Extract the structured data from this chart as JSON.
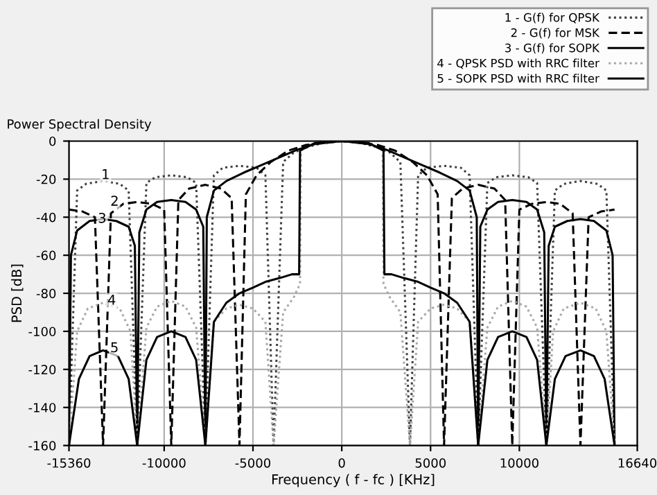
{
  "chart_data": {
    "type": "line",
    "title": "Power Spectral Density",
    "xlabel": "Frequency ( f - fc ) [KHz]",
    "ylabel": "PSD [dB]",
    "xlim": [
      -15360,
      16640
    ],
    "xticks": [
      -15360,
      -10000,
      -5000,
      0,
      5000,
      10000,
      16640
    ],
    "ylim": [
      -160,
      0
    ],
    "yticks": [
      -160,
      -140,
      -120,
      -100,
      -80,
      -60,
      -40,
      -20,
      0
    ],
    "grid": true,
    "legend": "top right",
    "series": [
      {
        "name": "1 - G(f) for QPSK",
        "color": "#404040",
        "line_style": "dotted",
        "x": [
          -15360,
          -14900,
          -14400,
          -13440,
          -12500,
          -12000,
          -11520,
          -11000,
          -10500,
          -9600,
          -8700,
          -8200,
          -7680,
          -7200,
          -6700,
          -5760,
          -4800,
          -4300,
          -3840,
          -3300,
          -2700,
          -1900,
          -1000,
          0,
          1000,
          1900,
          2700,
          3300,
          3840,
          4300,
          4800,
          5760,
          6700,
          7200,
          7680,
          8200,
          8700,
          9600,
          10500,
          11000,
          11520,
          12000,
          12500,
          13440,
          14400,
          14900,
          15360
        ],
        "values": [
          -160,
          -26,
          -22.5,
          -21,
          -22.5,
          -26,
          -160,
          -22,
          -19,
          -18,
          -19,
          -22,
          -160,
          -18,
          -14,
          -13,
          -14,
          -18,
          -160,
          -11,
          -6,
          -3,
          -0.8,
          0,
          -0.8,
          -3,
          -6,
          -11,
          -160,
          -18,
          -14,
          -13,
          -14,
          -18,
          -160,
          -22,
          -19,
          -18,
          -19,
          -22,
          -160,
          -26,
          -22.5,
          -21,
          -22.5,
          -26,
          -160
        ]
      },
      {
        "name": "2 - G(f) for MSK",
        "color": "#000000",
        "line_style": "dashed",
        "x": [
          -15360,
          -14600,
          -13900,
          -13440,
          -13000,
          -12300,
          -11520,
          -10700,
          -10000,
          -9600,
          -9200,
          -8600,
          -7680,
          -6800,
          -6200,
          -5760,
          -5400,
          -4800,
          -4000,
          -3000,
          -2000,
          0,
          2000,
          3000,
          4000,
          4800,
          5400,
          5760,
          6200,
          6800,
          7680,
          8600,
          9200,
          9600,
          10000,
          10700,
          11520,
          12300,
          13000,
          13440,
          13900,
          14600,
          15360
        ],
        "values": [
          -36,
          -37,
          -40,
          -160,
          -38,
          -33,
          -32,
          -33,
          -36,
          -160,
          -31,
          -25,
          -23,
          -25,
          -30,
          -160,
          -28,
          -18,
          -11,
          -5,
          -2,
          0,
          -2,
          -5,
          -11,
          -18,
          -28,
          -160,
          -30,
          -25,
          -23,
          -25,
          -31,
          -160,
          -36,
          -33,
          -32,
          -33,
          -38,
          -160,
          -40,
          -37,
          -36
        ]
      },
      {
        "name": "3 - G(f) for SOPK",
        "color": "#000000",
        "line_style": "solid",
        "x": [
          -15360,
          -15250,
          -14900,
          -14200,
          -13440,
          -12700,
          -12000,
          -11650,
          -11520,
          -11400,
          -11000,
          -10400,
          -9600,
          -8800,
          -8200,
          -7800,
          -7680,
          -7600,
          -7200,
          -6500,
          -5500,
          -4500,
          -3500,
          -2500,
          -1500,
          0,
          1500,
          2500,
          3500,
          4500,
          5500,
          6500,
          7200,
          7600,
          7680,
          7800,
          8200,
          8800,
          9600,
          10400,
          11000,
          11400,
          11520,
          11650,
          12000,
          12700,
          13440,
          14200,
          14900,
          15250,
          15360
        ],
        "values": [
          -160,
          -60,
          -47,
          -42,
          -41,
          -42,
          -45,
          -55,
          -160,
          -48,
          -36,
          -32,
          -31,
          -32,
          -36,
          -45,
          -160,
          -40,
          -26,
          -21,
          -16.5,
          -12.5,
          -8.5,
          -4.5,
          -1.5,
          0,
          -1.5,
          -4.5,
          -8.5,
          -12.5,
          -16.5,
          -21,
          -26,
          -40,
          -160,
          -45,
          -36,
          -32,
          -31,
          -32,
          -36,
          -48,
          -160,
          -55,
          -45,
          -42,
          -41,
          -42,
          -47,
          -60,
          -160
        ]
      },
      {
        "name": "4 - QPSK PSD with RRC filter",
        "color": "#a8a8a8",
        "line_style": "dotted",
        "x": [
          -15360,
          -14900,
          -14300,
          -13440,
          -12500,
          -11900,
          -11520,
          -11000,
          -10400,
          -9600,
          -8800,
          -8200,
          -7680,
          -7200,
          -6500,
          -5760,
          -5000,
          -4300,
          -3840,
          -3300,
          -2700,
          -2350,
          -2300,
          -1500,
          0,
          1500,
          2300,
          2350,
          2700,
          3300,
          3840,
          4300,
          5000,
          5760,
          6500,
          7200,
          7680,
          8200,
          8800,
          9600,
          10400,
          11000,
          11520,
          11900,
          12500,
          13440,
          14300,
          14900,
          15360
        ],
        "values": [
          -160,
          -100,
          -88,
          -85,
          -88,
          -100,
          -160,
          -98,
          -87,
          -84,
          -87,
          -98,
          -160,
          -95,
          -88,
          -86,
          -88,
          -95,
          -160,
          -90,
          -82,
          -75,
          -5,
          -1,
          0,
          -1,
          -5,
          -75,
          -82,
          -90,
          -160,
          -95,
          -88,
          -86,
          -88,
          -95,
          -160,
          -98,
          -87,
          -84,
          -87,
          -98,
          -160,
          -100,
          -88,
          -85,
          -88,
          -100,
          -160
        ]
      },
      {
        "name": "5 - SOPK PSD with RRC filter",
        "color": "#000000",
        "line_style": "solid",
        "x": [
          -15360,
          -14800,
          -14200,
          -13440,
          -12600,
          -12000,
          -11520,
          -11000,
          -10400,
          -9600,
          -8800,
          -8200,
          -7680,
          -7200,
          -6500,
          -5760,
          -5000,
          -4300,
          -3500,
          -2800,
          -2400,
          -2350,
          -1500,
          0,
          1500,
          2350,
          2400,
          2800,
          3500,
          4300,
          5000,
          5760,
          6500,
          7200,
          7680,
          8200,
          8800,
          9600,
          10400,
          11000,
          11520,
          12000,
          12600,
          13440,
          14200,
          14800,
          15360
        ],
        "values": [
          -160,
          -125,
          -113,
          -110,
          -113,
          -125,
          -160,
          -115,
          -103,
          -100,
          -103,
          -115,
          -160,
          -95,
          -85,
          -80,
          -77,
          -74,
          -72,
          -70,
          -70,
          -5,
          -1,
          0,
          -1,
          -5,
          -70,
          -70,
          -72,
          -74,
          -77,
          -80,
          -85,
          -95,
          -160,
          -115,
          -103,
          -100,
          -103,
          -115,
          -160,
          -125,
          -113,
          -110,
          -113,
          -125,
          -160
        ]
      }
    ],
    "annotations": [
      {
        "text": "1",
        "x": -13300,
        "y": -18
      },
      {
        "text": "2",
        "x": -12790,
        "y": -32
      },
      {
        "text": "3",
        "x": -13490,
        "y": -41
      },
      {
        "text": "4",
        "x": -12950,
        "y": -84
      },
      {
        "text": "5",
        "x": -12800,
        "y": -109
      }
    ]
  }
}
